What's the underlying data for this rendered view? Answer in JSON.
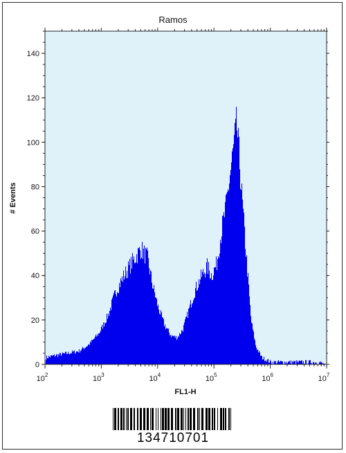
{
  "chart_data": {
    "type": "histogram",
    "title": "Ramos",
    "xlabel": "FL1-H",
    "ylabel": "# Events",
    "x_scale": "log",
    "xlim": [
      100,
      10000000
    ],
    "ylim": [
      0,
      150
    ],
    "x_ticks": [
      {
        "base": "10",
        "exp": "2"
      },
      {
        "base": "10",
        "exp": "3"
      },
      {
        "base": "10",
        "exp": "4"
      },
      {
        "base": "10",
        "exp": "5"
      },
      {
        "base": "10",
        "exp": "6"
      },
      {
        "base": "10",
        "exp": "7"
      }
    ],
    "y_ticks": [
      "0",
      "20",
      "40",
      "60",
      "80",
      "100",
      "120",
      "140"
    ],
    "grid": false,
    "colors": {
      "fill": "#0000ee",
      "background": "#dff1f9",
      "axis": "#222222"
    },
    "series": [
      {
        "x": [
          100,
          150,
          250,
          400,
          600,
          900,
          1300,
          1800,
          2500,
          3500,
          5000,
          6500,
          8000,
          10000,
          13000,
          17000,
          22000,
          28000,
          35000,
          45000,
          60000,
          75000,
          90000,
          110000,
          130000,
          160000,
          190000,
          220000,
          250000,
          280000,
          320000,
          380000,
          450000,
          550000,
          700000,
          850000,
          1000000,
          1300000,
          2000000,
          4000000,
          7000000,
          10000000
        ],
        "y": [
          3,
          4,
          5,
          6,
          9,
          14,
          22,
          33,
          40,
          46,
          52,
          48,
          36,
          26,
          18,
          13,
          12,
          16,
          24,
          33,
          40,
          44,
          40,
          45,
          58,
          70,
          85,
          97,
          108,
          92,
          70,
          45,
          20,
          8,
          3,
          2,
          1,
          1,
          1,
          1,
          1,
          0
        ]
      }
    ]
  },
  "barcode": {
    "number": "134710701"
  }
}
